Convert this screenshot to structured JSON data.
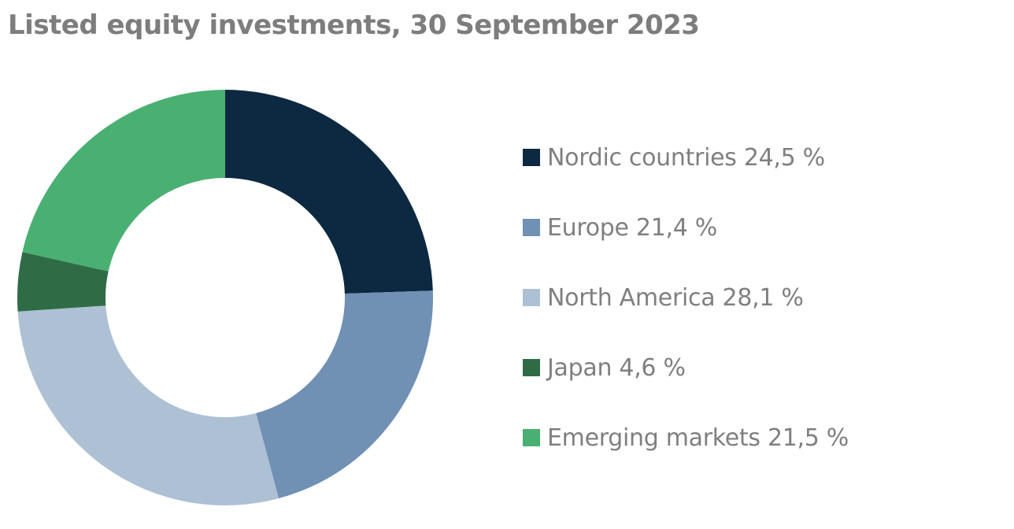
{
  "chart_data": {
    "type": "pie",
    "variant": "donut",
    "title": "Listed equity investments, 30 September 2023",
    "legend_position": "right",
    "slices": [
      {
        "label": "Nordic countries 24,5 %",
        "value": 24.5,
        "color": "#0c2941"
      },
      {
        "label": "Europe 21,4 %",
        "value": 21.4,
        "color": "#7090b4"
      },
      {
        "label": "North America 28,1 %",
        "value": 28.1,
        "color": "#adc0d4"
      },
      {
        "label": "Japan 4,6 %",
        "value": 4.6,
        "color": "#2f6c46"
      },
      {
        "label": "Emerging markets 21,5 %",
        "value": 21.5,
        "color": "#49b072"
      }
    ]
  }
}
